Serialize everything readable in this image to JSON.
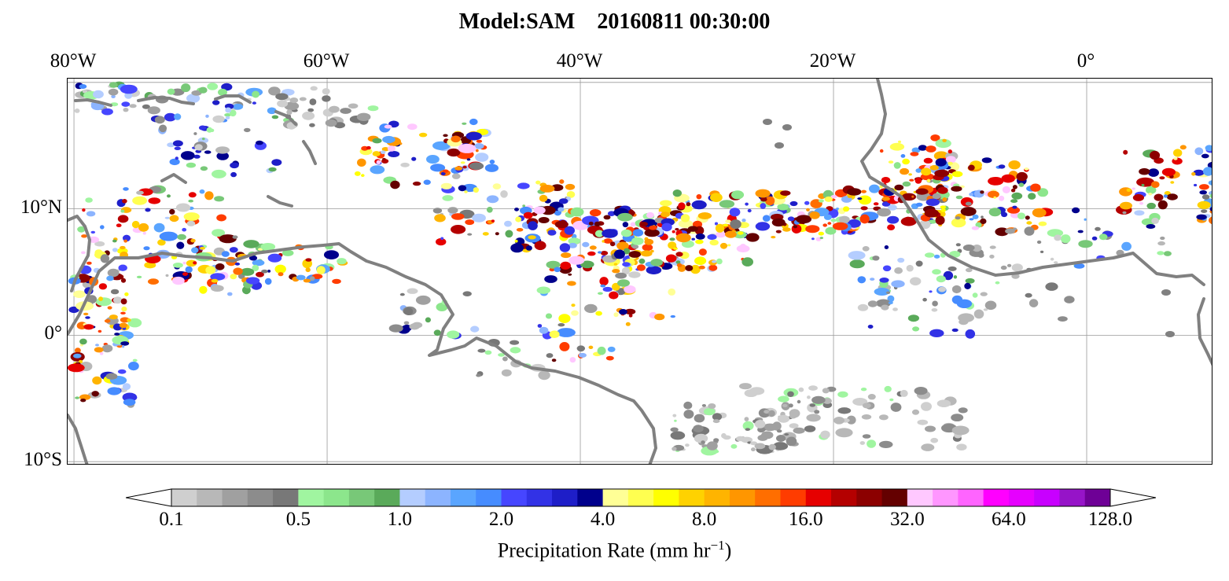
{
  "title": "Model:SAM    20160811 00:30:00",
  "map": {
    "lon_labels": [
      {
        "text": "80°W",
        "lon": -80
      },
      {
        "text": "60°W",
        "lon": -60
      },
      {
        "text": "40°W",
        "lon": -40
      },
      {
        "text": "20°W",
        "lon": -20
      },
      {
        "text": "0°",
        "lon": 0
      }
    ],
    "lat_labels": [
      {
        "text": "10°N",
        "lat": 10
      },
      {
        "text": "0°",
        "lat": 0
      },
      {
        "text": "10°S",
        "lat": -10
      }
    ],
    "extent": {
      "lon_min": -80.5,
      "lon_max": 10,
      "lat_min": -10.3,
      "lat_max": 20.3
    },
    "coastline_color": "#808080",
    "grid_color": "#999999"
  },
  "colorbar": {
    "ticks": [
      "0.1",
      "0.5",
      "1.0",
      "2.0",
      "4.0",
      "8.0",
      "16.0",
      "32.0",
      "64.0",
      "128.0"
    ],
    "colors": [
      "#cfcfcf",
      "#b8b8b8",
      "#a0a0a0",
      "#8c8c8c",
      "#787878",
      "#a0f5a0",
      "#8ce68c",
      "#78c878",
      "#5aaa5a",
      "#b4cdff",
      "#8cb4ff",
      "#5aa5ff",
      "#468cff",
      "#4646ff",
      "#3232e6",
      "#1e1ec8",
      "#00008c",
      "#ffff96",
      "#ffff50",
      "#ffff00",
      "#ffd200",
      "#ffb400",
      "#ff9600",
      "#ff6e00",
      "#ff3c00",
      "#e60000",
      "#b40000",
      "#8c0000",
      "#640000",
      "#ffc8ff",
      "#ff96ff",
      "#ff64ff",
      "#ff00ff",
      "#e600ff",
      "#c800ff",
      "#9614c8",
      "#6e0096"
    ],
    "label": "Precipitation Rate (mm hr",
    "label_exponent": "−1",
    "label_close": ")"
  }
}
